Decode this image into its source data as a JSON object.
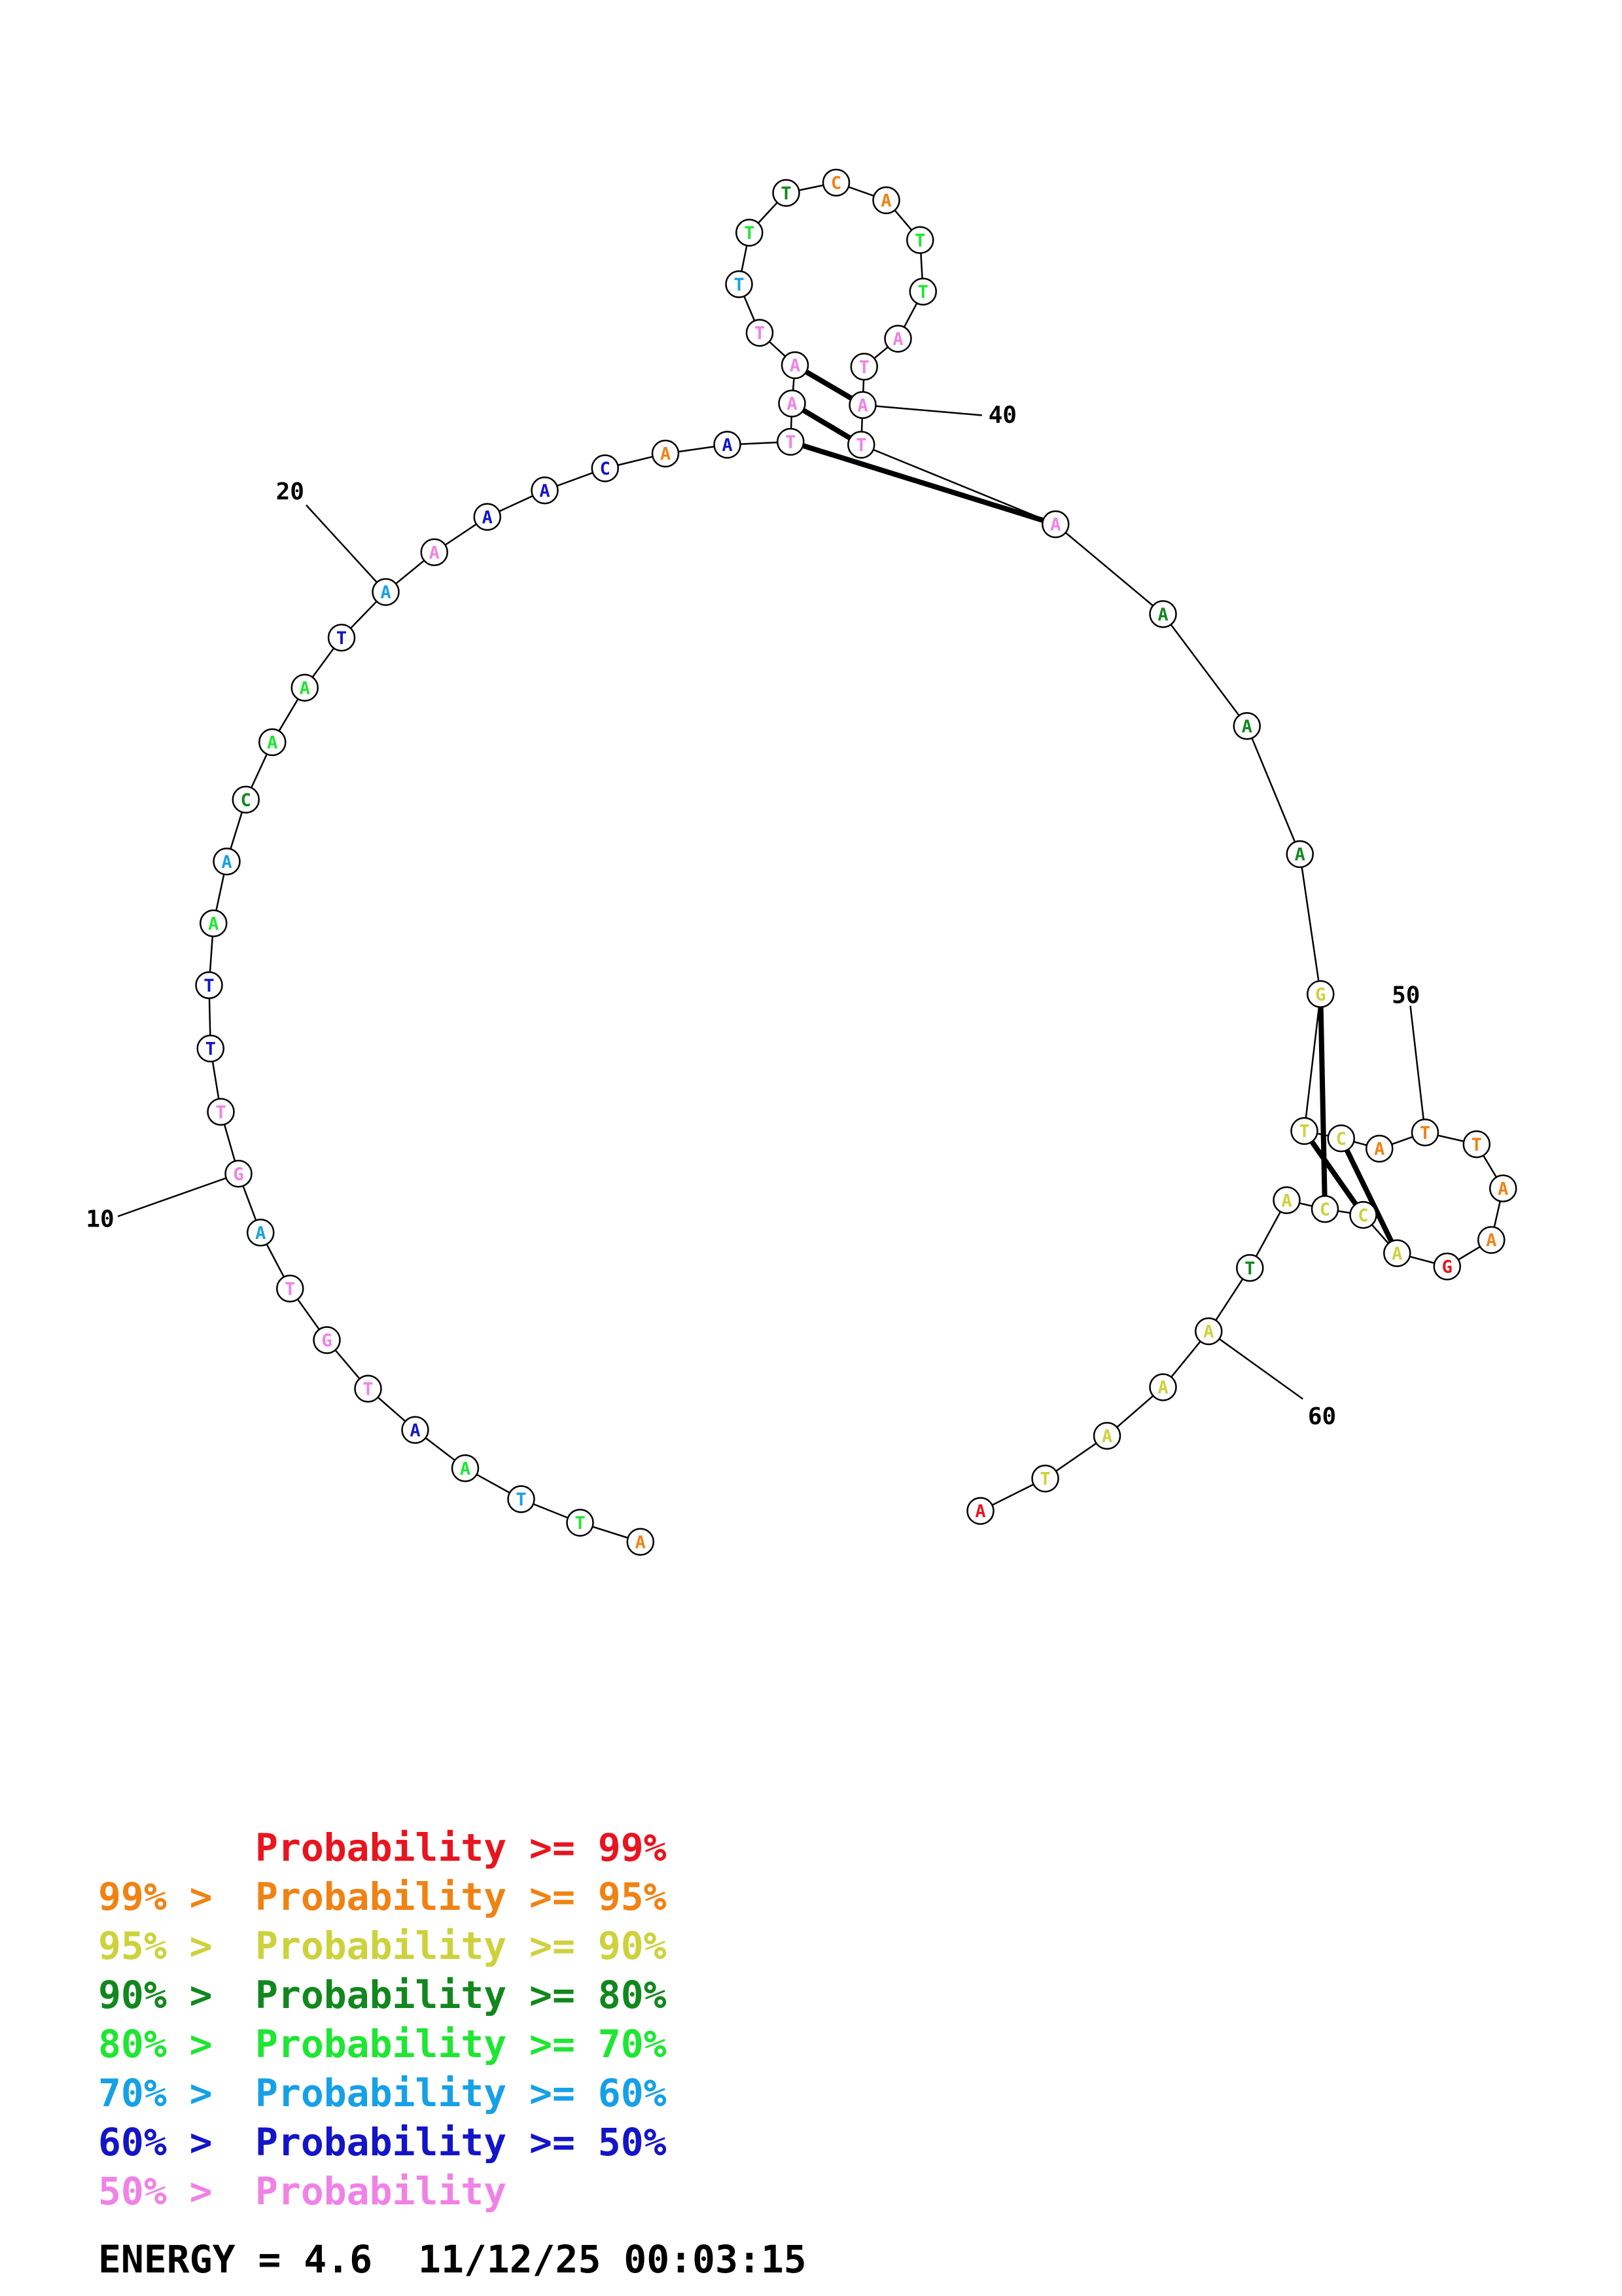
{
  "structure": {
    "sequence": [
      "A",
      "T",
      "T",
      "A",
      "A",
      "T",
      "G",
      "T",
      "A",
      "G",
      "T",
      "T",
      "T",
      "A",
      "A",
      "C",
      "A",
      "A",
      "T",
      "A",
      "A",
      "A",
      "A",
      "C",
      "A",
      "A",
      "T",
      "A",
      "A",
      "T",
      "T",
      "T",
      "T",
      "C",
      "A",
      "T",
      "T",
      "A",
      "T",
      "A",
      "T",
      "A",
      "A",
      "A",
      "A",
      "G",
      "T",
      "C",
      "A",
      "T",
      "T",
      "A",
      "A",
      "G",
      "A",
      "C",
      "C",
      "A",
      "T",
      "A",
      "A",
      "A",
      "T",
      "A"
    ],
    "colors": [
      "orange",
      "green",
      "cyan",
      "green",
      "blue",
      "pink",
      "pink",
      "pink",
      "cyan",
      "pink",
      "pink",
      "blue",
      "blue",
      "green",
      "cyan",
      "dkgreen",
      "green",
      "green",
      "blue",
      "cyan",
      "pink",
      "blue",
      "blue",
      "blue",
      "orange",
      "blue",
      "pink",
      "pink",
      "pink",
      "pink",
      "cyan",
      "green",
      "dkgreen",
      "orange",
      "orange",
      "green",
      "green",
      "pink",
      "pink",
      "pink",
      "pink",
      "pink",
      "dkgreen",
      "dkgreen",
      "dkgreen",
      "yellow",
      "yellow",
      "yellow",
      "orange",
      "orange",
      "orange",
      "orange",
      "orange",
      "red",
      "yellow",
      "yellow",
      "yellow",
      "yellow",
      "dkgreen",
      "yellow",
      "yellow",
      "yellow",
      "yellow",
      "red"
    ],
    "pairs": [
      [
        27,
        42
      ],
      [
        28,
        41
      ],
      [
        29,
        40
      ],
      [
        46,
        57
      ],
      [
        47,
        56
      ],
      [
        48,
        55
      ]
    ],
    "position_labels": [
      "10",
      "20",
      "40",
      "50",
      "60"
    ]
  },
  "palette": {
    "red": "#e8141e",
    "orange": "#f08214",
    "yellow": "#cdd23c",
    "dkgreen": "#12871e",
    "green": "#1ee632",
    "cyan": "#16a0e6",
    "blue": "#1414c8",
    "pink": "#f082e6"
  },
  "legend": [
    {
      "prefix": "",
      "text": "Probability >= 99%",
      "color": "#e8141e"
    },
    {
      "prefix": "99% > ",
      "text": "Probability >= 95%",
      "color": "#f08214"
    },
    {
      "prefix": "95% > ",
      "text": "Probability >= 90%",
      "color": "#cdd23c"
    },
    {
      "prefix": "90% > ",
      "text": "Probability >= 80%",
      "color": "#12871e"
    },
    {
      "prefix": "80% > ",
      "text": "Probability >= 70%",
      "color": "#1ee632"
    },
    {
      "prefix": "70% > ",
      "text": "Probability >= 60%",
      "color": "#16a0e6"
    },
    {
      "prefix": "60% > ",
      "text": "Probability >= 50%",
      "color": "#1414c8"
    },
    {
      "prefix": "50% > ",
      "text": "Probability",
      "color": "#f082e6"
    }
  ],
  "footer": {
    "energy_label": "ENERGY = 4.6",
    "timestamp": "11/12/25 00:03:15"
  }
}
